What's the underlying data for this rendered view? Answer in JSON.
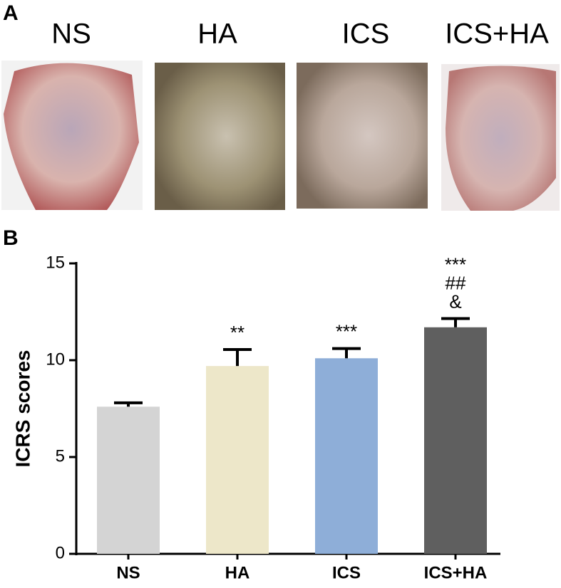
{
  "panel_labels": [
    "A",
    "B"
  ],
  "photos": {
    "labels": [
      "NS",
      "HA",
      "ICS",
      "ICS+HA"
    ]
  },
  "chart_data": {
    "type": "bar",
    "ylabel": "ICRS scores",
    "categories": [
      "NS",
      "HA",
      "ICS",
      "ICS+HA"
    ],
    "values": [
      7.6,
      9.7,
      10.1,
      11.7
    ],
    "errors": [
      0.2,
      0.85,
      0.5,
      0.45
    ],
    "colors": [
      "#d4d4d4",
      "#ede7c9",
      "#8eaed8",
      "#5f5f5f"
    ],
    "annotations": [
      null,
      [
        "**"
      ],
      [
        "***"
      ],
      [
        "***",
        "##",
        "&"
      ]
    ],
    "ylim": [
      0,
      15
    ],
    "yticks": [
      0,
      5,
      10,
      15
    ],
    "grid": false
  }
}
